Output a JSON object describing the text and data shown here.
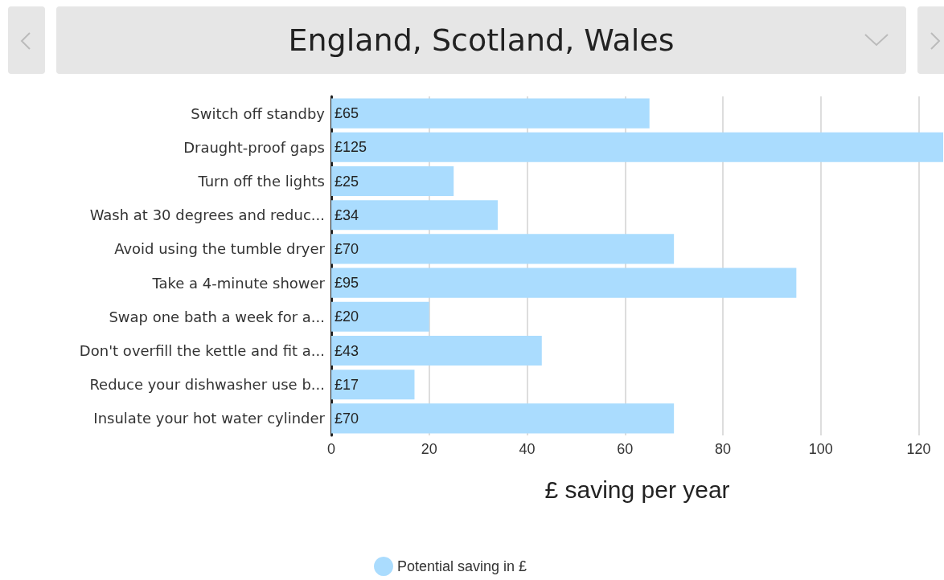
{
  "chart_data": {
    "type": "bar",
    "orientation": "horizontal",
    "title": "England, Scotland, Wales",
    "xlabel": "£ saving per year",
    "categories": [
      "Switch off standby",
      "Draught-proof gaps",
      "Turn off the lights",
      "Wash at 30 degrees and reduc...",
      "Avoid using the tumble dryer",
      "Take a 4-minute shower",
      "Swap one bath a week for a...",
      "Don't overfill the kettle and fit a...",
      "Reduce your dishwasher use b...",
      "Insulate your hot water cylinder"
    ],
    "series": [
      {
        "name": "Potential saving in £",
        "color": "#aadcfe",
        "values": [
          65,
          125,
          25,
          34,
          70,
          95,
          20,
          43,
          17,
          70
        ],
        "value_labels": [
          "£65",
          "£125",
          "£25",
          "£34",
          "£70",
          "£95",
          "£20",
          "£43",
          "£17",
          "£70"
        ]
      }
    ],
    "xlim": [
      0,
      125
    ],
    "xticks": [
      0,
      20,
      40,
      60,
      80,
      100,
      120
    ],
    "grid": "x",
    "legend": "bottom"
  }
}
